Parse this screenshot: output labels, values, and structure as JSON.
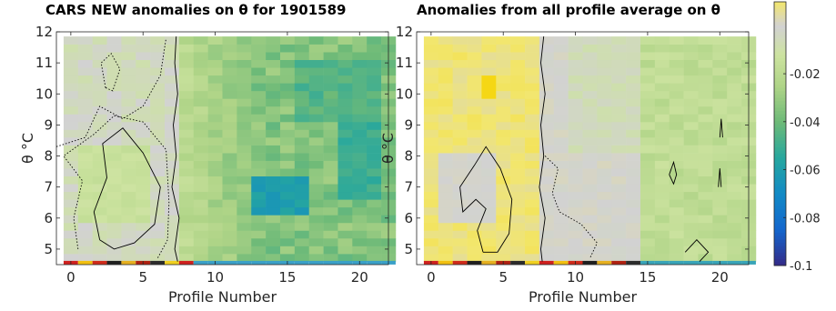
{
  "titles": {
    "left": "CARS NEW anomalies on θ for 1901589",
    "right": "Anomalies from all profile average on θ"
  },
  "chart_data": [
    {
      "type": "heatmap",
      "title": "CARS NEW anomalies on θ for 1901589",
      "xlabel": "Profile Number",
      "ylabel": "θ °C",
      "xlim": [
        -1,
        22
      ],
      "ylim": [
        4.5,
        12
      ],
      "xticks": [
        0,
        5,
        10,
        15,
        20
      ],
      "yticks": [
        5,
        6,
        7,
        8,
        9,
        10,
        11,
        12
      ],
      "regions": [
        {
          "profiles": [
            0,
            7
          ],
          "typical_value": 0.0,
          "description_value_range": [
            -0.02,
            0.005
          ]
        },
        {
          "profiles": [
            8,
            12
          ],
          "typical_value": -0.02
        },
        {
          "profiles": [
            13,
            22
          ],
          "typical_value": -0.04,
          "min_value": -0.065
        }
      ]
    },
    {
      "type": "heatmap",
      "title": "Anomalies from all profile average on θ",
      "xlabel": "Profile Number",
      "ylabel": "θ °C",
      "xlim": [
        -1,
        22
      ],
      "ylim": [
        4.5,
        12
      ],
      "xticks": [
        0,
        5,
        10,
        15,
        20
      ],
      "yticks": [
        5,
        6,
        7,
        8,
        9,
        10,
        11,
        12
      ],
      "regions": [
        {
          "profiles": [
            0,
            7
          ],
          "typical_value": 0.01,
          "max_value": 0.02
        },
        {
          "profiles": [
            8,
            14
          ],
          "typical_value": 0.0
        },
        {
          "profiles": [
            15,
            22
          ],
          "typical_value": -0.02
        }
      ]
    }
  ],
  "colorbar": {
    "ticks": [
      -0.02,
      -0.04,
      -0.06,
      -0.08,
      -0.1
    ],
    "tick_labels": [
      "-0.02",
      "-0.04",
      "-0.06",
      "-0.08",
      "-0.1"
    ],
    "range": [
      -0.1,
      0.01
    ],
    "colormap": "parula"
  }
}
